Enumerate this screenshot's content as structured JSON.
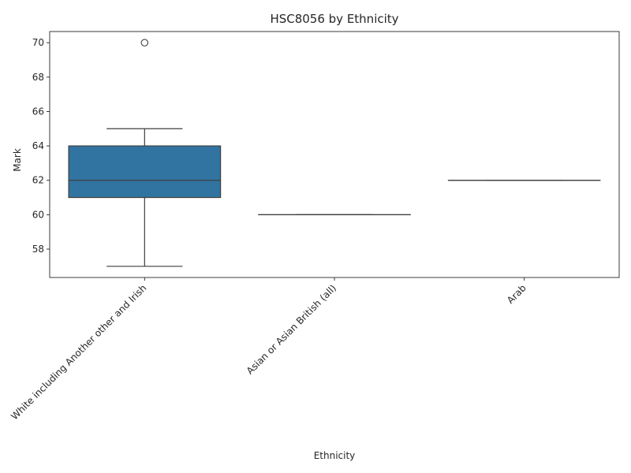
{
  "chart_data": {
    "type": "box",
    "title": "HSC8056 by Ethnicity",
    "xlabel": "Ethnicity",
    "ylabel": "Mark",
    "ylim": [
      56.35,
      70.65
    ],
    "yticks": [
      58,
      60,
      62,
      64,
      66,
      68,
      70
    ],
    "categories": [
      "White including Another other and Irish",
      "Asian or Asian British (all)",
      "Arab"
    ],
    "boxes": [
      {
        "category": "White including Another other and Irish",
        "whisker_low": 57,
        "q1": 61,
        "median": 62,
        "q3": 64,
        "whisker_high": 65,
        "outliers": [
          70
        ],
        "color": "#3274a1"
      },
      {
        "category": "Asian or Asian British (all)",
        "whisker_low": 60,
        "q1": 60,
        "median": 60,
        "q3": 60,
        "whisker_high": 60,
        "outliers": [],
        "color": "#e1812c"
      },
      {
        "category": "Arab",
        "whisker_low": 62,
        "q1": 62,
        "median": 62,
        "q3": 62,
        "whisker_high": 62,
        "outliers": [],
        "color": "#3a923a"
      }
    ],
    "grid": false,
    "legend": "none"
  }
}
